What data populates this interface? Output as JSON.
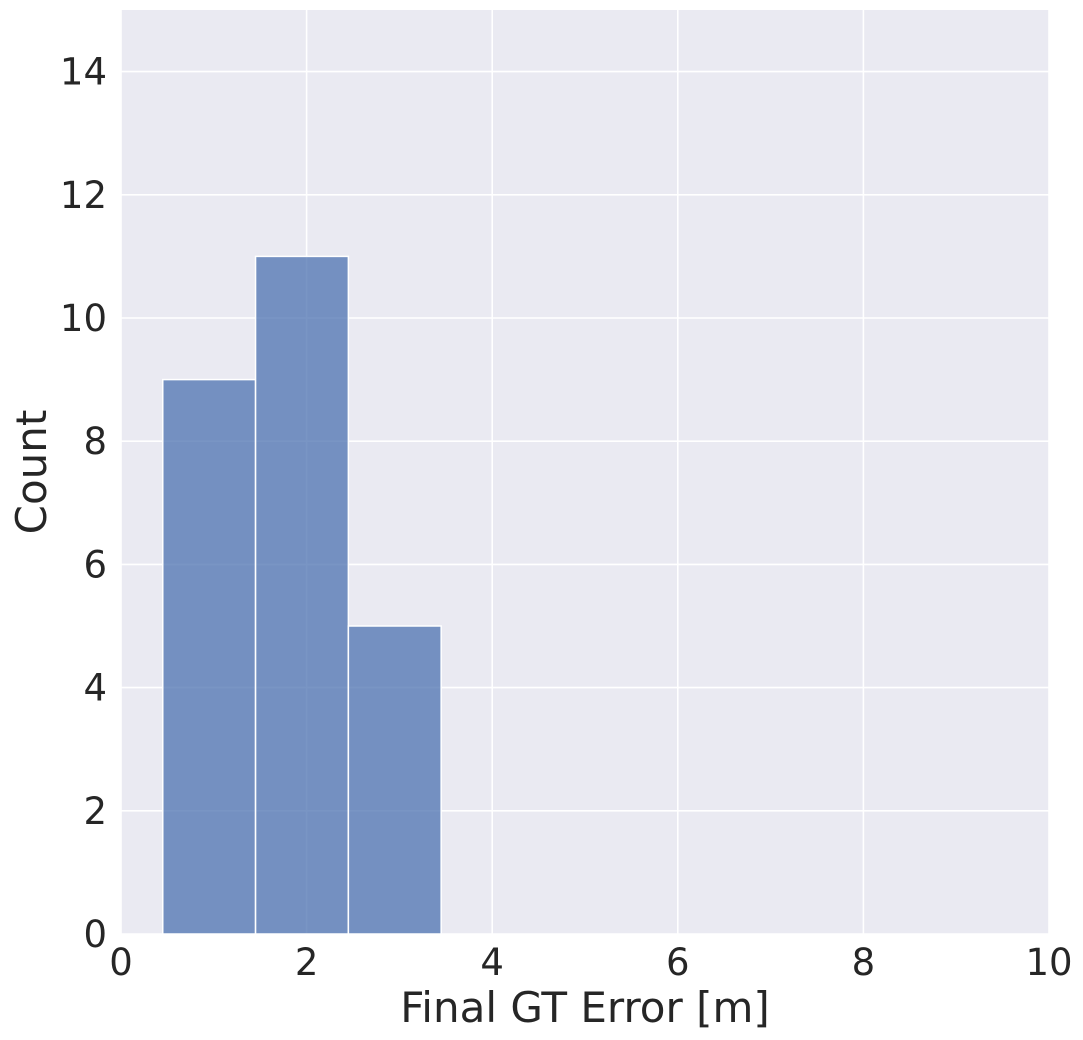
{
  "chart_data": {
    "type": "bar",
    "subtype": "histogram",
    "title": "",
    "xlabel": "Final GT Error [m]",
    "ylabel": "Count",
    "xlim": [
      0,
      10
    ],
    "ylim": [
      0,
      15
    ],
    "xticks": [
      0,
      2,
      4,
      6,
      8,
      10
    ],
    "yticks": [
      0,
      2,
      4,
      6,
      8,
      10,
      12,
      14
    ],
    "grid": true,
    "legend": "none",
    "bins": [
      {
        "start": 0.45,
        "end": 1.45,
        "count": 9
      },
      {
        "start": 1.45,
        "end": 2.45,
        "count": 11
      },
      {
        "start": 2.45,
        "end": 3.45,
        "count": 5
      }
    ],
    "colors": {
      "bar": "#4c72b0",
      "plot_background": "#eaeaf2",
      "grid": "#ffffff",
      "text": "#262626"
    }
  }
}
